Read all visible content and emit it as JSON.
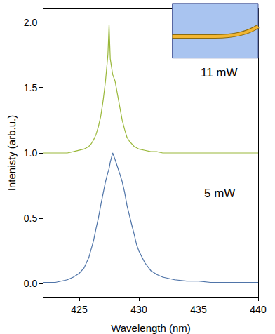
{
  "chart_data": {
    "type": "line",
    "x_label": "Wavelength (nm)",
    "y_label": "Intenisty (arb.u.)",
    "x": [
      422,
      423,
      424,
      424.5,
      425,
      425.4,
      425.8,
      426,
      426.2,
      426.4,
      426.6,
      426.8,
      427,
      427.2,
      427.4,
      427.5,
      427.6,
      427.8,
      428,
      428.2,
      428.4,
      428.6,
      428.8,
      429,
      429.2,
      429.4,
      429.6,
      429.8,
      430,
      430.5,
      431,
      431.5,
      432,
      433,
      434,
      435,
      436,
      438,
      440
    ],
    "series": [
      {
        "name": "11 mW",
        "color": "#9ab83a",
        "values": [
          1.0,
          1.0,
          1.0,
          1.01,
          1.02,
          1.03,
          1.05,
          1.07,
          1.1,
          1.14,
          1.2,
          1.28,
          1.4,
          1.55,
          1.75,
          1.98,
          1.72,
          1.6,
          1.55,
          1.45,
          1.35,
          1.25,
          1.18,
          1.12,
          1.09,
          1.07,
          1.05,
          1.04,
          1.03,
          1.02,
          1.01,
          1.01,
          1.0,
          1.0,
          1.0,
          1.0,
          1.0,
          1.0,
          1.0
        ]
      },
      {
        "name": "5 mW",
        "color": "#4f74a8",
        "values": [
          0.01,
          0.01,
          0.03,
          0.05,
          0.08,
          0.12,
          0.2,
          0.26,
          0.33,
          0.42,
          0.5,
          0.6,
          0.7,
          0.78,
          0.85,
          0.88,
          0.93,
          1.0,
          0.95,
          0.9,
          0.84,
          0.78,
          0.7,
          0.6,
          0.52,
          0.45,
          0.38,
          0.3,
          0.25,
          0.16,
          0.1,
          0.07,
          0.05,
          0.03,
          0.02,
          0.02,
          0.01,
          0.01,
          0.01
        ]
      }
    ],
    "annotations": [
      {
        "text": "11 mW"
      },
      {
        "text": "5 mW"
      }
    ],
    "xlim": [
      422,
      440
    ],
    "xticks": [
      425,
      430,
      435,
      440
    ],
    "ylim": [
      -0.1,
      2.1
    ],
    "yticks": [
      {
        "value": 0,
        "label": "0.0"
      },
      {
        "value": 0.5,
        "label": "0.5"
      },
      {
        "value": 1,
        "label": "1.0"
      },
      {
        "value": 1.5,
        "label": "1.5"
      },
      {
        "value": 2,
        "label": "2.0"
      }
    ],
    "grid": false
  }
}
